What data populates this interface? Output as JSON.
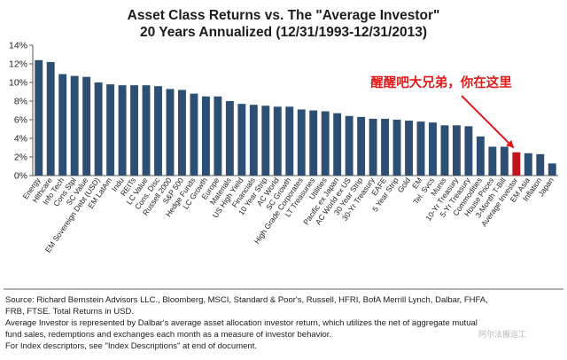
{
  "chart_data": {
    "type": "bar",
    "title": "Asset Class Returns vs. The \"Average Investor\"",
    "subtitle": "20 Years Annualized (12/31/1993-12/31/2013)",
    "xlabel": "",
    "ylabel": "",
    "ylim": [
      0,
      14
    ],
    "yticks": [
      "0%",
      "2%",
      "4%",
      "6%",
      "8%",
      "10%",
      "12%",
      "14%"
    ],
    "grid": false,
    "categories": [
      "Energy",
      "Hlthcare",
      "Info Tech",
      "Cons Stpl",
      "SC Value",
      "EM Sovereign Debt (USD)",
      "EM LatAm",
      "Indu",
      "REITs",
      "LC Value",
      "Cons. Disc",
      "Russell 2000",
      "S&P 500",
      "Hedge Funds",
      "LC Growth",
      "Europe",
      "Materials",
      "US High Yield",
      "Financials",
      "10 Year Strip",
      "AC World",
      "SC Growth",
      "High Grade Corporates",
      "LT Treasuries",
      "Utilities",
      "Pacific ex Japan",
      "AC World ex US",
      "30 Year Strip",
      "30-Yr Treasury",
      "EAFE",
      "5 Year Strip",
      "Gold",
      "EM",
      "Tel. Svcs",
      "Munis",
      "10-Yr Treasury",
      "5-Yr Treasury",
      "Commodities",
      "House Prices",
      "3-Month T-Bill",
      "Average Investor",
      "EM Asia",
      "Inflation",
      "Japan"
    ],
    "values": [
      12.4,
      12.2,
      10.9,
      10.7,
      10.6,
      10.0,
      9.8,
      9.7,
      9.7,
      9.7,
      9.6,
      9.3,
      9.2,
      8.8,
      8.5,
      8.5,
      8.0,
      7.7,
      7.6,
      7.5,
      7.4,
      7.4,
      7.1,
      7.0,
      6.9,
      6.7,
      6.4,
      6.3,
      6.1,
      6.1,
      6.0,
      5.9,
      5.8,
      5.7,
      5.4,
      5.4,
      5.3,
      4.2,
      3.1,
      3.1,
      2.5,
      2.4,
      2.3,
      1.3
    ],
    "highlight_index": 40,
    "colors": {
      "bar": "#2c4f73",
      "highlight": "#c0141a",
      "annotation": "#e21818"
    },
    "annotation": "醒醒吧大兄弟，你在这里"
  },
  "source_text": [
    "Source: Richard Bernstein Advisors LLC., Bloomberg, MSCI, Standard & Poor's, Russell, HFRI, BofA Merrill Lynch, Dalbar, FHFA,",
    "FRB, FTSE.  Total Returns in USD.",
    "Average Investor is represented by Dalbar's average asset allocation investor return, which utilizes the net of aggregate mutual",
    "fund sales, redemptions and exchanges each month as a measure of investor behavior.",
    "For Index descriptors, see \"Index Descriptions\" at end of document."
  ],
  "watermark": "阿尔法搬运工"
}
